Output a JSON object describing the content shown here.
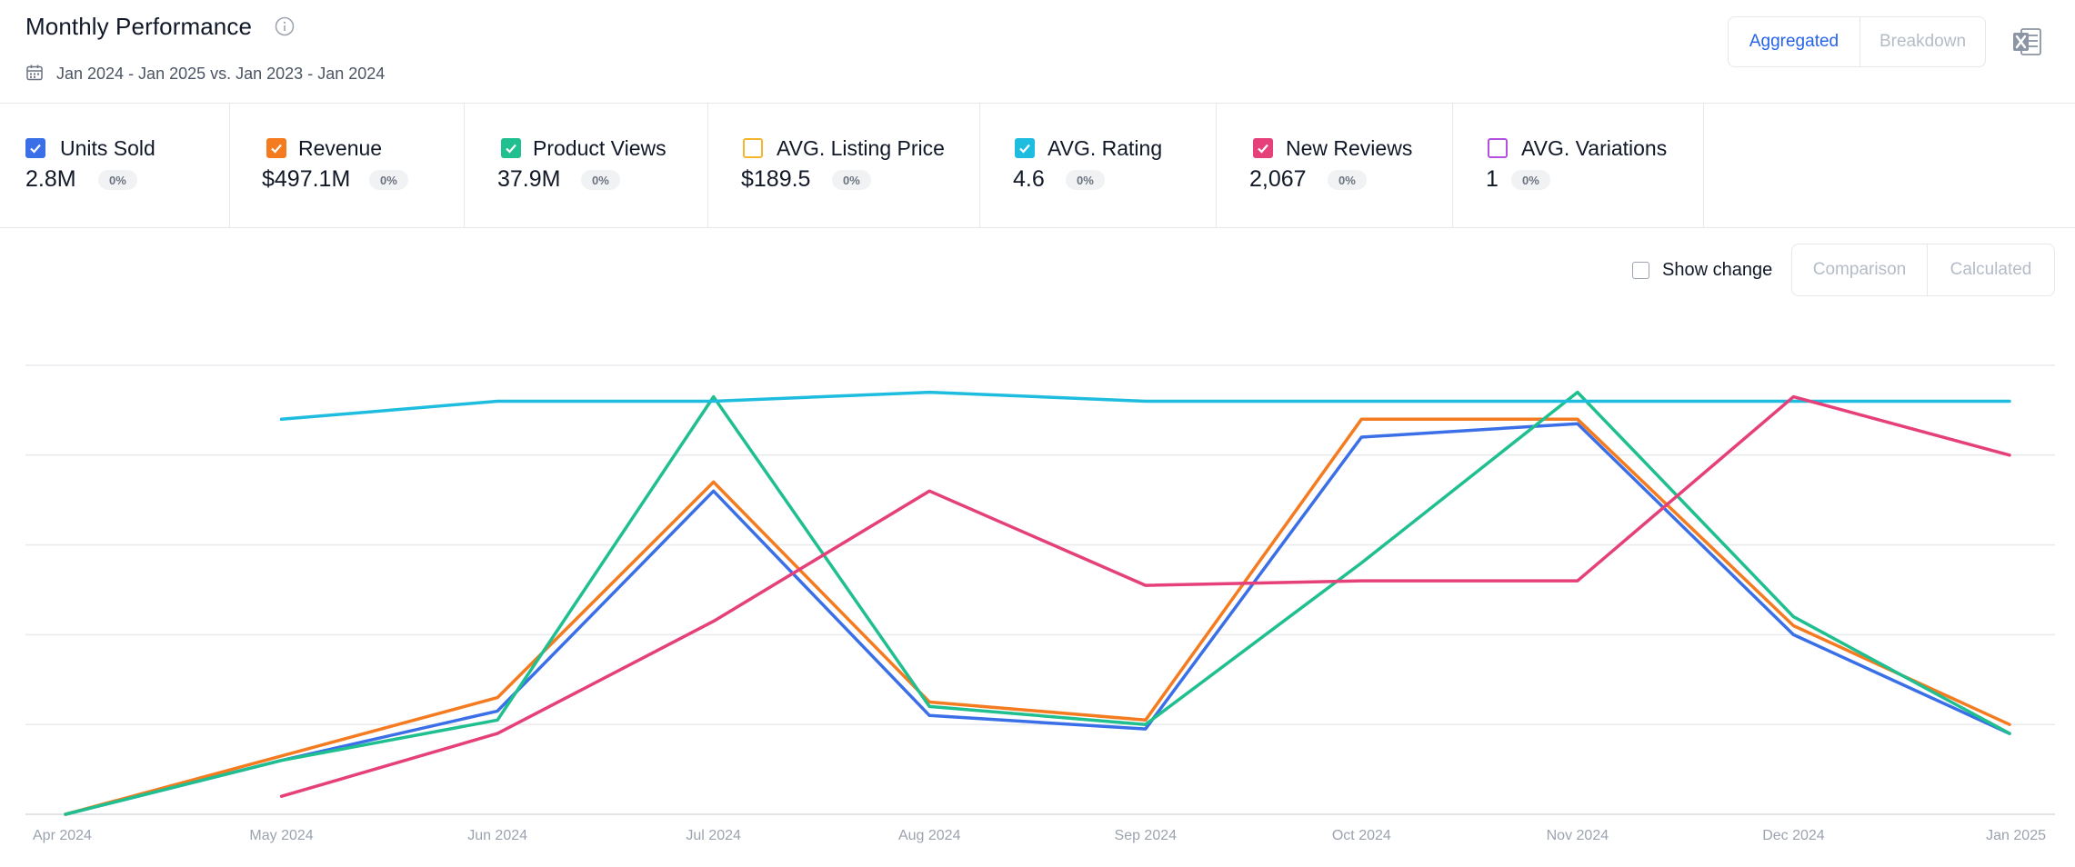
{
  "header": {
    "title": "Monthly Performance",
    "date_range": "Jan 2024 - Jan 2025 vs. Jan 2023 - Jan 2024",
    "view_options": [
      "Aggregated",
      "Breakdown"
    ],
    "active_view": "Aggregated",
    "export_icon": "excel-icon",
    "info_icon": "info-icon",
    "date_icon": "calendar-icon"
  },
  "metrics": [
    {
      "label": "Units Sold",
      "value": "2.8M",
      "change": "0%",
      "color": "#3b6fe8",
      "checked": true
    },
    {
      "label": "Revenue",
      "value": "$497.1M",
      "change": "0%",
      "color": "#f47b20",
      "checked": true
    },
    {
      "label": "Product Views",
      "value": "37.9M",
      "change": "0%",
      "color": "#1fbf8f",
      "checked": true
    },
    {
      "label": "AVG. Listing Price",
      "value": "$189.5",
      "change": "0%",
      "color": "#f5b52e",
      "checked": false
    },
    {
      "label": "AVG. Rating",
      "value": "4.6",
      "change": "0%",
      "color": "#1ebde0",
      "checked": true
    },
    {
      "label": "New Reviews",
      "value": "2,067",
      "change": "0%",
      "color": "#e5407a",
      "checked": true
    },
    {
      "label": "AVG. Variations",
      "value": "1",
      "change": "0%",
      "color": "#b44fe0",
      "checked": false
    }
  ],
  "controls": {
    "show_change_label": "Show change",
    "show_change_checked": false,
    "mode_options": [
      "Comparison",
      "Calculated"
    ]
  },
  "chart_data": {
    "type": "line",
    "title": "",
    "xlabel": "",
    "ylabel": "",
    "ylim": [
      0,
      100
    ],
    "grid": true,
    "legend": "none",
    "x": [
      "Apr 2024",
      "May 2024",
      "Jun 2024",
      "Jul 2024",
      "Aug 2024",
      "Sep 2024",
      "Oct 2024",
      "Nov 2024",
      "Dec 2024",
      "Jan 2025"
    ],
    "series": [
      {
        "name": "Units Sold",
        "color": "#3b6fe8",
        "values": [
          0,
          12,
          23,
          72,
          22,
          19,
          84,
          87,
          40,
          18
        ]
      },
      {
        "name": "Revenue",
        "color": "#f47b20",
        "values": [
          0,
          13,
          26,
          74,
          25,
          21,
          88,
          88,
          42,
          20
        ]
      },
      {
        "name": "Product Views",
        "color": "#1fbf8f",
        "values": [
          0,
          12,
          21,
          93,
          24,
          20,
          56,
          94,
          44,
          18
        ]
      },
      {
        "name": "AVG. Rating",
        "color": "#1ebde0",
        "values": [
          null,
          88,
          92,
          92,
          94,
          92,
          92,
          92,
          92,
          92
        ]
      },
      {
        "name": "New Reviews",
        "color": "#e5407a",
        "values": [
          null,
          4,
          18,
          43,
          72,
          51,
          52,
          52,
          93,
          80
        ]
      }
    ]
  }
}
